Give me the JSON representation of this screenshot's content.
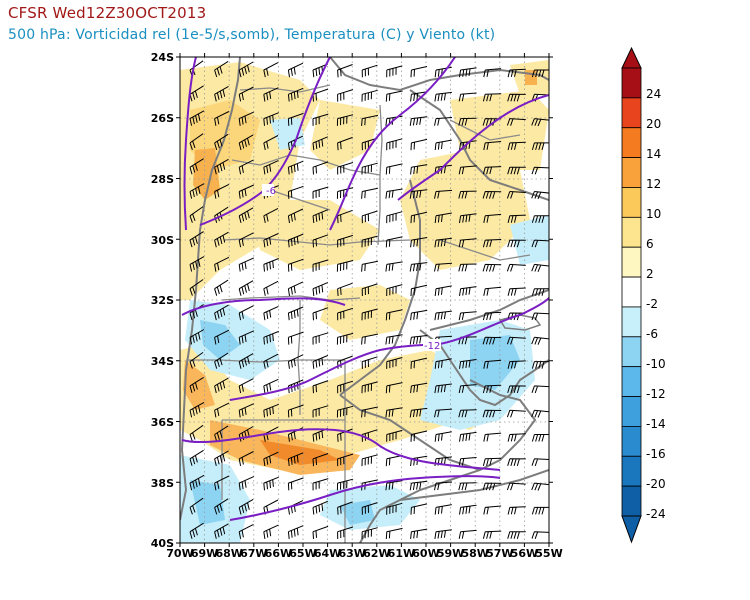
{
  "title": {
    "line1": "CFSR Wed12Z30OCT2013",
    "line2": "500 hPa: Vorticidad rel (1e-5/s,somb), Temperatura (C) y Viento (kt)"
  },
  "map": {
    "lat_labels": [
      "24S",
      "26S",
      "28S",
      "30S",
      "32S",
      "34S",
      "36S",
      "38S",
      "40S"
    ],
    "lon_labels": [
      "70W",
      "69W",
      "68W",
      "67W",
      "66W",
      "65W",
      "64W",
      "63W",
      "62W",
      "61W",
      "60W",
      "59W",
      "58W",
      "57W",
      "56W",
      "55W"
    ],
    "contour_labels": [
      "-6",
      "-12"
    ]
  },
  "colorbar": {
    "labels": [
      "24",
      "20",
      "14",
      "12",
      "10",
      "6",
      "2",
      "-2",
      "-6",
      "-10",
      "-12",
      "-14",
      "-16",
      "-20",
      "-24"
    ],
    "colors": [
      "#a50f15",
      "#e8451e",
      "#f47b20",
      "#f9a13a",
      "#fbc95a",
      "#fce58e",
      "#fff7c2",
      "#ffffff",
      "#c8f0fa",
      "#8dd3f2",
      "#5cb8ea",
      "#3ea1de",
      "#2a8ccf",
      "#1a76bd",
      "#0e5fa6"
    ]
  },
  "styles": {
    "contour_color": "#7a1fc4",
    "border_color": "#7d7d7d",
    "warm_color": "#fce08a",
    "cool_color": "#b7e6f6"
  }
}
